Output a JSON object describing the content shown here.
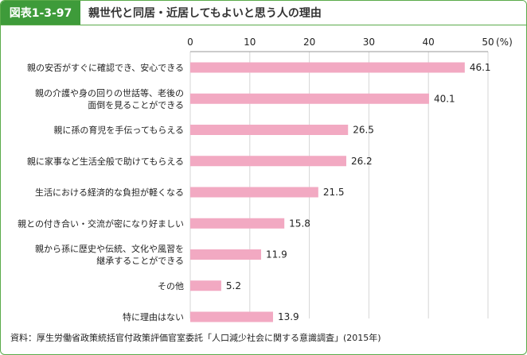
{
  "header": {
    "figure_label": "図表1-3-97",
    "title": "親世代と同居・近居してもよいと思う人の理由"
  },
  "chart_data": {
    "type": "bar",
    "orientation": "horizontal",
    "title": "親世代と同居・近居してもよいと思う人の理由",
    "unit_label": "(%)",
    "xlim": [
      0,
      50
    ],
    "ticks": [
      0,
      10,
      20,
      30,
      40,
      50
    ],
    "bar_color": "#f2a9c2",
    "categories": [
      [
        "親の安否がすぐに確認でき、安心できる"
      ],
      [
        "親の介護や身の回りの世話等、老後の",
        "面倒を見ることができる"
      ],
      [
        "親に孫の育児を手伝ってもらえる"
      ],
      [
        "親に家事など生活全般で助けてもらえる"
      ],
      [
        "生活における経済的な負担が軽くなる"
      ],
      [
        "親との付き合い・交流が密になり好ましい"
      ],
      [
        "親から孫に歴史や伝統、文化や風習を",
        "継承することができる"
      ],
      [
        "その他"
      ],
      [
        "特に理由はない"
      ]
    ],
    "values": [
      46.1,
      40.1,
      26.5,
      26.2,
      21.5,
      15.8,
      11.9,
      5.2,
      13.9
    ],
    "value_labels": [
      "46.1",
      "40.1",
      "26.5",
      "26.2",
      "21.5",
      "15.8",
      "11.9",
      "5.2",
      "13.9"
    ]
  },
  "footer": {
    "source": "資料：厚生労働省政策統括官付政策評価官室委託「人口減少社会に関する意識調査」(2015年)"
  }
}
